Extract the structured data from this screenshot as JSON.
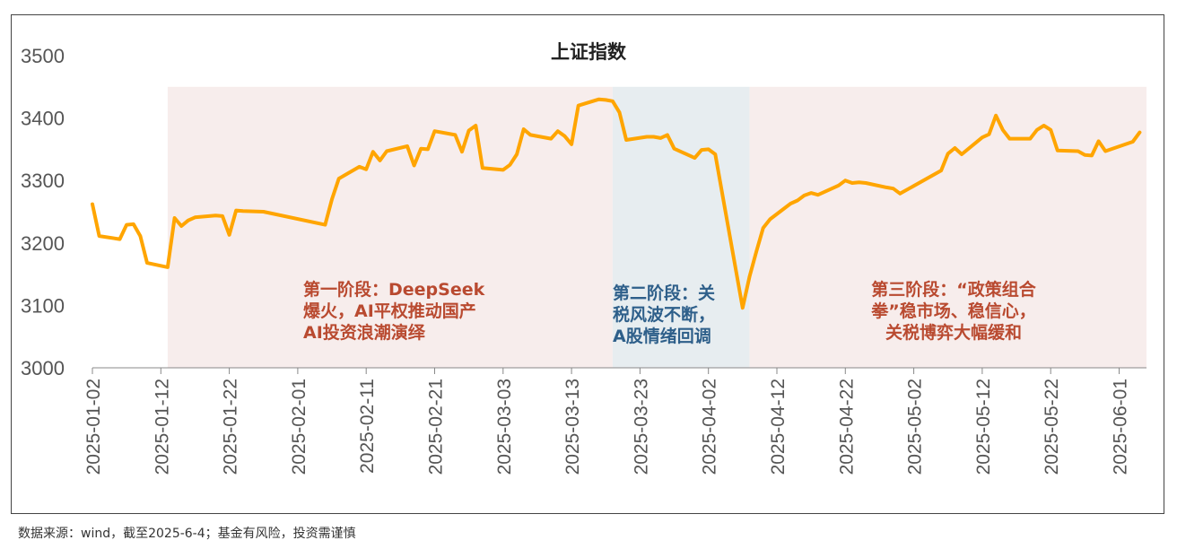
{
  "chart_data": {
    "type": "line",
    "title": "上证指数",
    "xlabel": "",
    "ylabel": "",
    "ylim": [
      3000,
      3500
    ],
    "yticks": [
      3000,
      3100,
      3200,
      3300,
      3400,
      3500
    ],
    "xticks": [
      "2025-01-02",
      "2025-01-12",
      "2025-01-22",
      "2025-02-01",
      "2025-02-11",
      "2025-02-21",
      "2025-03-03",
      "2025-03-13",
      "2025-03-23",
      "2025-04-02",
      "2025-04-12",
      "2025-04-22",
      "2025-05-02",
      "2025-05-12",
      "2025-05-22",
      "2025-06-01"
    ],
    "grid": false,
    "line_color": "#FFA500",
    "series": [
      {
        "x": [
          "2025-01-02",
          "2025-01-03",
          "2025-01-06",
          "2025-01-07",
          "2025-01-08",
          "2025-01-09",
          "2025-01-10",
          "2025-01-13",
          "2025-01-14",
          "2025-01-15",
          "2025-01-16",
          "2025-01-17",
          "2025-01-20",
          "2025-01-21",
          "2025-01-22",
          "2025-01-23",
          "2025-01-24",
          "2025-01-27",
          "2025-02-05",
          "2025-02-06",
          "2025-02-07",
          "2025-02-10",
          "2025-02-11",
          "2025-02-12",
          "2025-02-13",
          "2025-02-14",
          "2025-02-17",
          "2025-02-18",
          "2025-02-19",
          "2025-02-20",
          "2025-02-21",
          "2025-02-24",
          "2025-02-25",
          "2025-02-26",
          "2025-02-27",
          "2025-02-28",
          "2025-03-03",
          "2025-03-04",
          "2025-03-05",
          "2025-03-06",
          "2025-03-07",
          "2025-03-10",
          "2025-03-11",
          "2025-03-12",
          "2025-03-13",
          "2025-03-14",
          "2025-03-17",
          "2025-03-18",
          "2025-03-19",
          "2025-03-20",
          "2025-03-21",
          "2025-03-24",
          "2025-03-25",
          "2025-03-26",
          "2025-03-27",
          "2025-03-28",
          "2025-03-31",
          "2025-04-01",
          "2025-04-02",
          "2025-04-03",
          "2025-04-07",
          "2025-04-08",
          "2025-04-09",
          "2025-04-10",
          "2025-04-11",
          "2025-04-14",
          "2025-04-15",
          "2025-04-16",
          "2025-04-17",
          "2025-04-18",
          "2025-04-21",
          "2025-04-22",
          "2025-04-23",
          "2025-04-24",
          "2025-04-25",
          "2025-04-28",
          "2025-04-29",
          "2025-04-30",
          "2025-05-06",
          "2025-05-07",
          "2025-05-08",
          "2025-05-09",
          "2025-05-12",
          "2025-05-13",
          "2025-05-14",
          "2025-05-15",
          "2025-05-16",
          "2025-05-19",
          "2025-05-20",
          "2025-05-21",
          "2025-05-22",
          "2025-05-23",
          "2025-05-26",
          "2025-05-27",
          "2025-05-28",
          "2025-05-29",
          "2025-05-30",
          "2025-06-03",
          "2025-06-04"
        ],
        "y": [
          3262,
          3211,
          3206,
          3229,
          3230,
          3211,
          3168,
          3161,
          3240,
          3227,
          3236,
          3241,
          3244,
          3243,
          3213,
          3252,
          3251,
          3250,
          3229,
          3270,
          3303,
          3322,
          3318,
          3346,
          3332,
          3347,
          3355,
          3324,
          3351,
          3350,
          3379,
          3373,
          3346,
          3380,
          3388,
          3320,
          3317,
          3325,
          3342,
          3382,
          3373,
          3367,
          3379,
          3371,
          3358,
          3420,
          3430,
          3429,
          3427,
          3409,
          3365,
          3370,
          3370,
          3368,
          3373,
          3351,
          3336,
          3349,
          3350,
          3342,
          3096,
          3146,
          3186,
          3224,
          3238,
          3263,
          3268,
          3276,
          3280,
          3277,
          3292,
          3300,
          3296,
          3297,
          3296,
          3289,
          3287,
          3279,
          3316,
          3343,
          3352,
          3342,
          3369,
          3374,
          3404,
          3381,
          3367,
          3367,
          3381,
          3388,
          3381,
          3348,
          3347,
          3341,
          3340,
          3363,
          3347,
          3362,
          3377
        ]
      }
    ],
    "phases": [
      {
        "from": "2025-01-13",
        "to": "2025-03-19",
        "color": "#F7EDEC"
      },
      {
        "from": "2025-03-19",
        "to": "2025-04-08",
        "color": "#E7EDF0"
      },
      {
        "from": "2025-04-08",
        "to": "2025-06-05",
        "color": "#F7EDEC"
      }
    ],
    "annotations": [
      {
        "lines": [
          "第一阶段：DeepSeek",
          "爆火，AI平权推动国产",
          "AI投资浪潮演绎"
        ],
        "color": "#B94A30"
      },
      {
        "lines": [
          "第二阶段：关",
          "税风波不断，",
          "A股情绪回调"
        ],
        "color": "#2E5F8A"
      },
      {
        "lines": [
          "第三阶段：“政策组合",
          "拳”稳市场、稳信心，",
          "关税博弈大幅缓和"
        ],
        "color": "#B94A30"
      }
    ]
  },
  "footer": {
    "source": "数据来源：wind，截至2025-6-4；基金有风险，投资需谨慎"
  }
}
